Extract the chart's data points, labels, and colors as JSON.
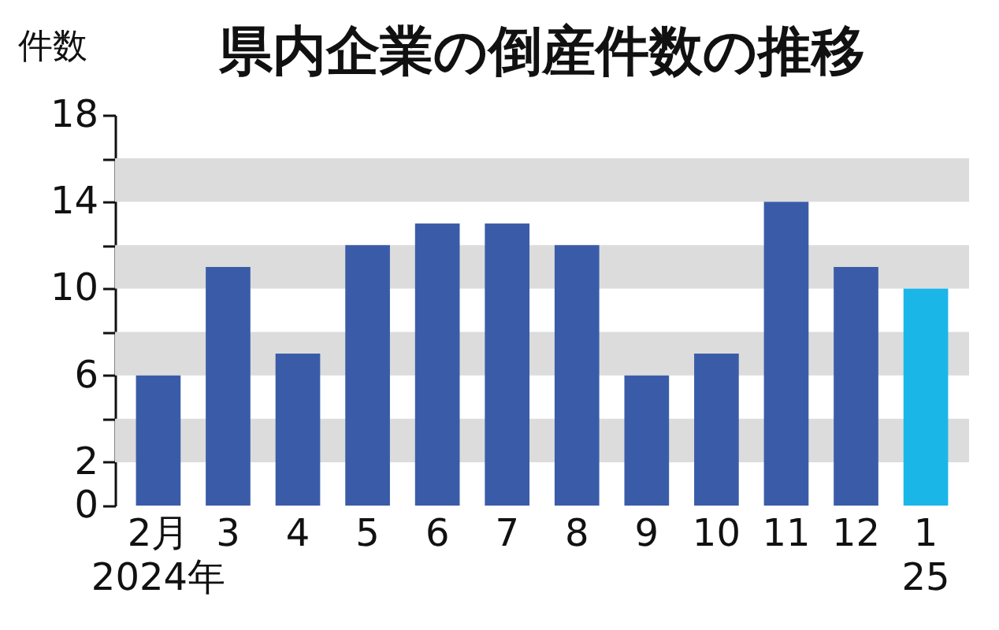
{
  "chart_data": {
    "type": "bar",
    "title": "県内企業の倒産件数の推移",
    "ylabel": "件数",
    "categories": [
      "2月\n2024年",
      "3",
      "4",
      "5",
      "6",
      "7",
      "8",
      "9",
      "10",
      "11",
      "12",
      "1\n25"
    ],
    "values": [
      6,
      11,
      7,
      12,
      13,
      13,
      12,
      6,
      7,
      14,
      11,
      10
    ],
    "colors": [
      "#3a5ca8",
      "#3a5ca8",
      "#3a5ca8",
      "#3a5ca8",
      "#3a5ca8",
      "#3a5ca8",
      "#3a5ca8",
      "#3a5ca8",
      "#3a5ca8",
      "#3a5ca8",
      "#3a5ca8",
      "#1bb6e8"
    ],
    "ylim": [
      0,
      18
    ],
    "yticks": [
      0,
      2,
      {
        "value": 4,
        "label": null
      },
      6,
      {
        "value": 8,
        "label": null
      },
      10,
      {
        "value": 12,
        "label": null
      },
      14,
      {
        "value": 16,
        "label": null
      },
      18
    ],
    "bands": [
      {
        "axis": "y",
        "from": 2,
        "to": 4,
        "color": "#dcdcdc"
      },
      {
        "axis": "y",
        "from": 6,
        "to": 8,
        "color": "#dcdcdc"
      },
      {
        "axis": "y",
        "from": 10,
        "to": 12,
        "color": "#dcdcdc"
      },
      {
        "axis": "y",
        "from": 14,
        "to": 16,
        "color": "#dcdcdc"
      }
    ]
  }
}
